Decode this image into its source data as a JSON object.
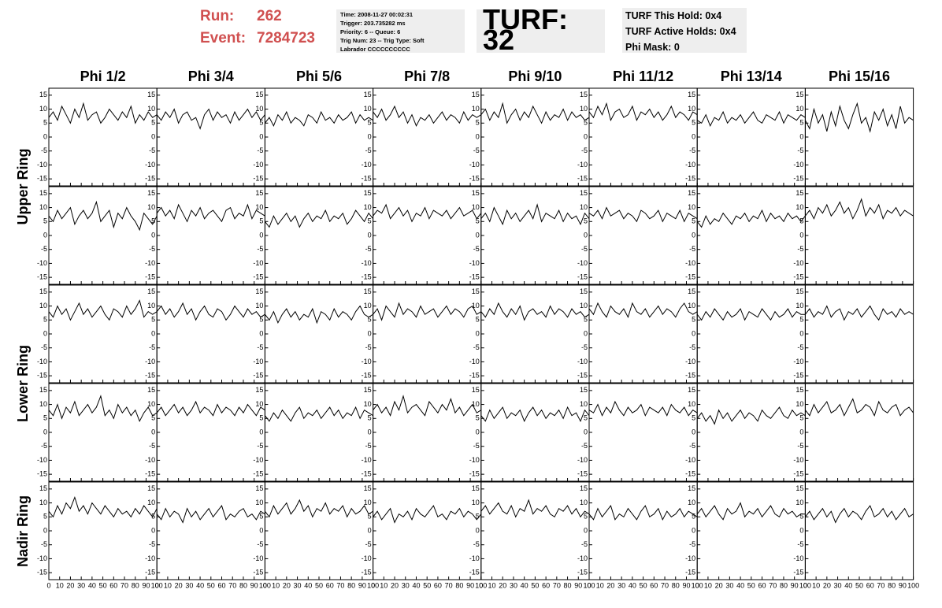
{
  "header": {
    "run_label": "Run:",
    "run": "262",
    "event_label": "Event:",
    "event": "7284723",
    "info": [
      "Time: 2008-11-27 00:02:31",
      "Trigger: 203.735282 ms",
      "Priority: 6 -- Queue: 6",
      "Trig Num: 23 -- Trig Type: Soft",
      "Labrador CCCCCCCCCC"
    ],
    "turf": "TURF: 32",
    "turf_info": [
      "TURF This Hold: 0x4",
      "TURF Active Holds: 0x4",
      "Phi Mask: 0"
    ]
  },
  "chart_data": {
    "type": "line",
    "color": "#000000",
    "columns": [
      "Phi 1/2",
      "Phi 3/4",
      "Phi 5/6",
      "Phi 7/8",
      "Phi 9/10",
      "Phi 11/12",
      "Phi 13/14",
      "Phi 15/16"
    ],
    "row_labels": [
      "Upper Ring",
      "Lower Ring",
      "Nadir Ring"
    ],
    "xlim": [
      0,
      100
    ],
    "xticks": [
      0,
      10,
      20,
      30,
      40,
      50,
      60,
      70,
      80,
      90,
      100
    ],
    "ylim": [
      -17.5,
      17.5
    ],
    "yticks": [
      -15,
      -10,
      -5,
      0,
      5,
      10,
      15
    ],
    "x": [
      0,
      4,
      8,
      12,
      16,
      20,
      24,
      28,
      32,
      36,
      40,
      44,
      48,
      52,
      56,
      60,
      64,
      68,
      72,
      76,
      80,
      84,
      88,
      92,
      96,
      100
    ],
    "panels": [
      [
        [
          7,
          9,
          6,
          11,
          8,
          5,
          10,
          7,
          12,
          6,
          8,
          9,
          5,
          7,
          10,
          8,
          6,
          9,
          7,
          11,
          5,
          8,
          6,
          9,
          7,
          8
        ],
        [
          8,
          6,
          9,
          7,
          10,
          5,
          8,
          9,
          6,
          7,
          3,
          8,
          10,
          6,
          9,
          7,
          8,
          5,
          9,
          6,
          8,
          10,
          7,
          9,
          6,
          8
        ],
        [
          5,
          7,
          4,
          8,
          6,
          9,
          5,
          7,
          6,
          4,
          8,
          7,
          5,
          9,
          6,
          7,
          5,
          8,
          6,
          7,
          9,
          5,
          8,
          6,
          7,
          6
        ],
        [
          9,
          7,
          10,
          6,
          8,
          11,
          7,
          9,
          5,
          8,
          4,
          7,
          6,
          8,
          5,
          7,
          9,
          6,
          8,
          7,
          5,
          9,
          6,
          8,
          7,
          8
        ],
        [
          8,
          10,
          6,
          9,
          7,
          12,
          5,
          8,
          10,
          6,
          9,
          7,
          11,
          8,
          5,
          9,
          6,
          8,
          7,
          10,
          6,
          9,
          7,
          8,
          6,
          7
        ],
        [
          9,
          7,
          11,
          8,
          12,
          6,
          9,
          10,
          7,
          8,
          11,
          6,
          9,
          8,
          10,
          7,
          9,
          6,
          8,
          11,
          7,
          9,
          8,
          6,
          9,
          8
        ],
        [
          6,
          5,
          8,
          4,
          7,
          6,
          9,
          5,
          7,
          6,
          8,
          5,
          7,
          9,
          6,
          5,
          8,
          7,
          6,
          9,
          5,
          8,
          7,
          6,
          8,
          7
        ],
        [
          6,
          3,
          10,
          5,
          8,
          2,
          9,
          4,
          11,
          6,
          3,
          8,
          12,
          5,
          7,
          2,
          9,
          6,
          10,
          4,
          8,
          3,
          11,
          5,
          7,
          6
        ]
      ],
      [
        [
          7,
          5,
          9,
          6,
          8,
          10,
          4,
          7,
          9,
          6,
          8,
          12,
          5,
          7,
          9,
          3,
          8,
          6,
          10,
          7,
          5,
          2,
          8,
          6,
          4,
          7
        ],
        [
          8,
          10,
          7,
          9,
          6,
          11,
          8,
          5,
          9,
          7,
          10,
          6,
          8,
          9,
          7,
          5,
          9,
          10,
          6,
          8,
          7,
          11,
          6,
          9,
          8,
          7
        ],
        [
          5,
          3,
          7,
          4,
          6,
          8,
          5,
          7,
          3,
          6,
          8,
          5,
          7,
          6,
          9,
          5,
          7,
          6,
          8,
          4,
          6,
          9,
          7,
          5,
          8,
          6
        ],
        [
          7,
          9,
          8,
          11,
          6,
          8,
          10,
          7,
          9,
          5,
          8,
          7,
          10,
          6,
          9,
          8,
          7,
          9,
          6,
          8,
          10,
          7,
          8,
          9,
          6,
          8
        ],
        [
          6,
          8,
          5,
          10,
          7,
          4,
          9,
          6,
          8,
          5,
          7,
          9,
          6,
          11,
          5,
          8,
          7,
          6,
          9,
          5,
          8,
          6,
          7,
          4,
          8,
          6
        ],
        [
          8,
          7,
          9,
          6,
          10,
          7,
          8,
          9,
          6,
          8,
          7,
          5,
          9,
          8,
          6,
          7,
          9,
          5,
          8,
          7,
          6,
          9,
          5,
          8,
          7,
          6
        ],
        [
          5,
          3,
          7,
          4,
          6,
          5,
          8,
          6,
          4,
          7,
          6,
          8,
          5,
          7,
          6,
          9,
          5,
          8,
          6,
          7,
          5,
          8,
          6,
          7,
          5,
          7
        ],
        [
          7,
          9,
          6,
          10,
          8,
          11,
          7,
          9,
          12,
          8,
          10,
          6,
          9,
          13,
          7,
          10,
          8,
          11,
          6,
          9,
          8,
          10,
          7,
          9,
          8,
          7
        ]
      ],
      [
        [
          8,
          6,
          10,
          7,
          9,
          5,
          8,
          11,
          7,
          9,
          6,
          8,
          10,
          7,
          5,
          9,
          8,
          6,
          10,
          7,
          9,
          12,
          6,
          8,
          7,
          8
        ],
        [
          8,
          10,
          7,
          9,
          6,
          8,
          11,
          7,
          9,
          5,
          8,
          10,
          7,
          6,
          9,
          8,
          5,
          7,
          10,
          8,
          6,
          9,
          7,
          8,
          6,
          7
        ],
        [
          7,
          5,
          8,
          4,
          7,
          9,
          6,
          8,
          5,
          7,
          6,
          9,
          4,
          8,
          7,
          5,
          9,
          6,
          8,
          7,
          5,
          8,
          10,
          7,
          6,
          7
        ],
        [
          7,
          9,
          5,
          10,
          8,
          6,
          11,
          7,
          9,
          8,
          6,
          10,
          7,
          8,
          9,
          6,
          8,
          10,
          7,
          9,
          8,
          6,
          9,
          10,
          7,
          8
        ],
        [
          8,
          6,
          9,
          7,
          11,
          8,
          6,
          9,
          7,
          10,
          5,
          8,
          9,
          7,
          8,
          6,
          10,
          7,
          9,
          8,
          6,
          9,
          7,
          8,
          6,
          7
        ],
        [
          9,
          7,
          11,
          8,
          6,
          10,
          8,
          7,
          9,
          6,
          11,
          8,
          7,
          9,
          6,
          8,
          10,
          7,
          9,
          8,
          6,
          9,
          11,
          8,
          7,
          8
        ],
        [
          7,
          5,
          8,
          6,
          9,
          7,
          5,
          8,
          6,
          7,
          9,
          5,
          8,
          7,
          6,
          9,
          7,
          5,
          8,
          6,
          7,
          9,
          6,
          8,
          7,
          7
        ],
        [
          7,
          9,
          6,
          8,
          7,
          10,
          6,
          8,
          9,
          5,
          8,
          7,
          9,
          6,
          8,
          10,
          7,
          5,
          9,
          7,
          8,
          6,
          9,
          7,
          8,
          7
        ]
      ],
      [
        [
          8,
          6,
          10,
          5,
          9,
          7,
          11,
          6,
          8,
          10,
          7,
          9,
          13,
          6,
          8,
          5,
          10,
          7,
          9,
          6,
          8,
          4,
          7,
          9,
          6,
          7
        ],
        [
          7,
          9,
          6,
          8,
          10,
          7,
          9,
          6,
          8,
          11,
          7,
          9,
          8,
          6,
          10,
          7,
          9,
          8,
          6,
          9,
          7,
          10,
          8,
          6,
          9,
          8
        ],
        [
          6,
          4,
          7,
          5,
          8,
          6,
          4,
          7,
          9,
          5,
          7,
          6,
          8,
          5,
          7,
          9,
          6,
          8,
          5,
          7,
          6,
          9,
          5,
          8,
          7,
          6
        ],
        [
          8,
          10,
          7,
          9,
          6,
          11,
          8,
          13,
          7,
          9,
          10,
          8,
          6,
          11,
          9,
          7,
          10,
          8,
          12,
          7,
          9,
          6,
          8,
          10,
          7,
          8
        ],
        [
          6,
          4,
          8,
          5,
          7,
          9,
          5,
          7,
          6,
          8,
          4,
          7,
          9,
          6,
          8,
          5,
          7,
          6,
          8,
          5,
          9,
          6,
          7,
          4,
          8,
          6
        ],
        [
          8,
          7,
          10,
          6,
          9,
          7,
          11,
          8,
          6,
          9,
          7,
          8,
          10,
          6,
          9,
          8,
          7,
          9,
          6,
          10,
          8,
          7,
          9,
          6,
          8,
          7
        ],
        [
          5,
          7,
          4,
          6,
          3,
          8,
          5,
          7,
          4,
          6,
          8,
          5,
          7,
          6,
          4,
          8,
          6,
          5,
          7,
          9,
          6,
          5,
          8,
          6,
          7,
          6
        ],
        [
          8,
          6,
          10,
          7,
          9,
          11,
          7,
          8,
          10,
          6,
          9,
          12,
          7,
          8,
          10,
          9,
          6,
          11,
          8,
          7,
          9,
          10,
          6,
          8,
          9,
          7
        ]
      ],
      [
        [
          7,
          5,
          9,
          6,
          10,
          8,
          12,
          7,
          9,
          6,
          10,
          8,
          6,
          9,
          7,
          5,
          8,
          6,
          7,
          5,
          8,
          6,
          9,
          7,
          5,
          8
        ],
        [
          6,
          4,
          8,
          5,
          7,
          6,
          3,
          8,
          5,
          7,
          4,
          6,
          8,
          5,
          7,
          9,
          4,
          6,
          5,
          7,
          8,
          5,
          6,
          4,
          7,
          6
        ],
        [
          7,
          5,
          9,
          6,
          8,
          10,
          6,
          8,
          11,
          7,
          9,
          5,
          8,
          7,
          10,
          6,
          8,
          7,
          9,
          5,
          8,
          6,
          7,
          9,
          6,
          7
        ],
        [
          5,
          7,
          4,
          6,
          8,
          3,
          6,
          5,
          7,
          4,
          8,
          6,
          5,
          7,
          9,
          5,
          6,
          4,
          7,
          6,
          8,
          5,
          7,
          6,
          4,
          6
        ],
        [
          7,
          9,
          6,
          8,
          10,
          7,
          6,
          9,
          5,
          8,
          7,
          11,
          6,
          8,
          7,
          9,
          6,
          5,
          8,
          7,
          9,
          6,
          8,
          5,
          7,
          6
        ],
        [
          6,
          4,
          8,
          5,
          7,
          9,
          4,
          6,
          5,
          8,
          6,
          4,
          7,
          9,
          5,
          6,
          8,
          4,
          7,
          5,
          6,
          8,
          5,
          7,
          6,
          5
        ],
        [
          6,
          8,
          5,
          7,
          9,
          6,
          4,
          8,
          6,
          7,
          10,
          5,
          7,
          6,
          8,
          5,
          7,
          9,
          6,
          5,
          8,
          6,
          7,
          5,
          6,
          6
        ],
        [
          5,
          7,
          4,
          6,
          8,
          5,
          7,
          3,
          6,
          8,
          5,
          7,
          6,
          4,
          7,
          9,
          5,
          6,
          8,
          5,
          7,
          4,
          6,
          8,
          5,
          6
        ]
      ]
    ]
  }
}
